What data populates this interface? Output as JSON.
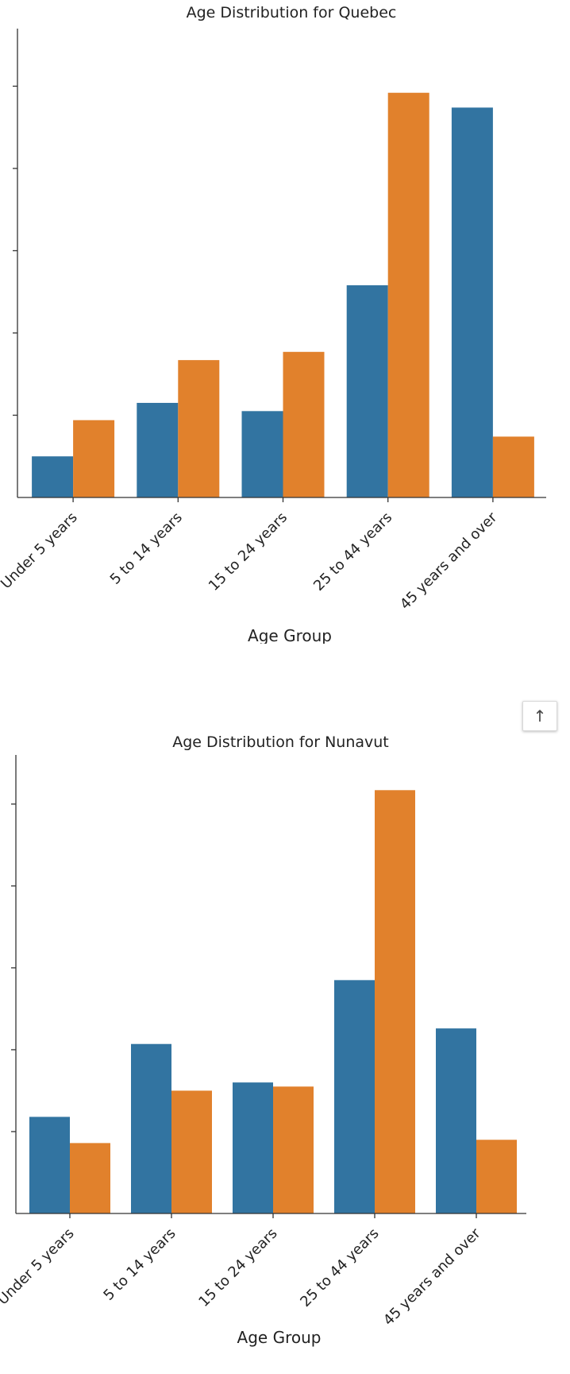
{
  "chart_data": [
    {
      "type": "bar",
      "title": "Age Distribution for Quebec",
      "xlabel": "Age Group",
      "ylabel": "",
      "categories": [
        "Under 5 years",
        "5 to 14 years",
        "15 to 24 years",
        "25 to 44 years",
        "45 years and over"
      ],
      "series": [
        {
          "color": "#3274a1",
          "values": [
            0.5,
            1.15,
            1.05,
            2.58,
            4.74
          ]
        },
        {
          "color": "#e1812c",
          "values": [
            0.94,
            1.67,
            1.77,
            4.92,
            0.74
          ]
        }
      ],
      "ylim": [
        0,
        5.7
      ],
      "yticks": [
        1,
        2,
        3,
        4,
        5
      ],
      "legend": "none",
      "grid": false
    },
    {
      "type": "bar",
      "title": "Age Distribution for Nunavut",
      "xlabel": "Age Group",
      "ylabel": "",
      "categories": [
        "Under 5 years",
        "5 to 14 years",
        "15 to 24 years",
        "25 to 44 years",
        "45 years and over"
      ],
      "series": [
        {
          "color": "#3274a1",
          "values": [
            1.18,
            2.07,
            1.6,
            2.85,
            2.26
          ]
        },
        {
          "color": "#e1812c",
          "values": [
            0.86,
            1.5,
            1.55,
            5.17,
            0.9
          ]
        }
      ],
      "ylim": [
        0,
        5.6
      ],
      "yticks": [
        1,
        2,
        3,
        4,
        5
      ],
      "legend": "none",
      "grid": false
    }
  ],
  "ui": {
    "scroll_top_icon": "↑"
  }
}
